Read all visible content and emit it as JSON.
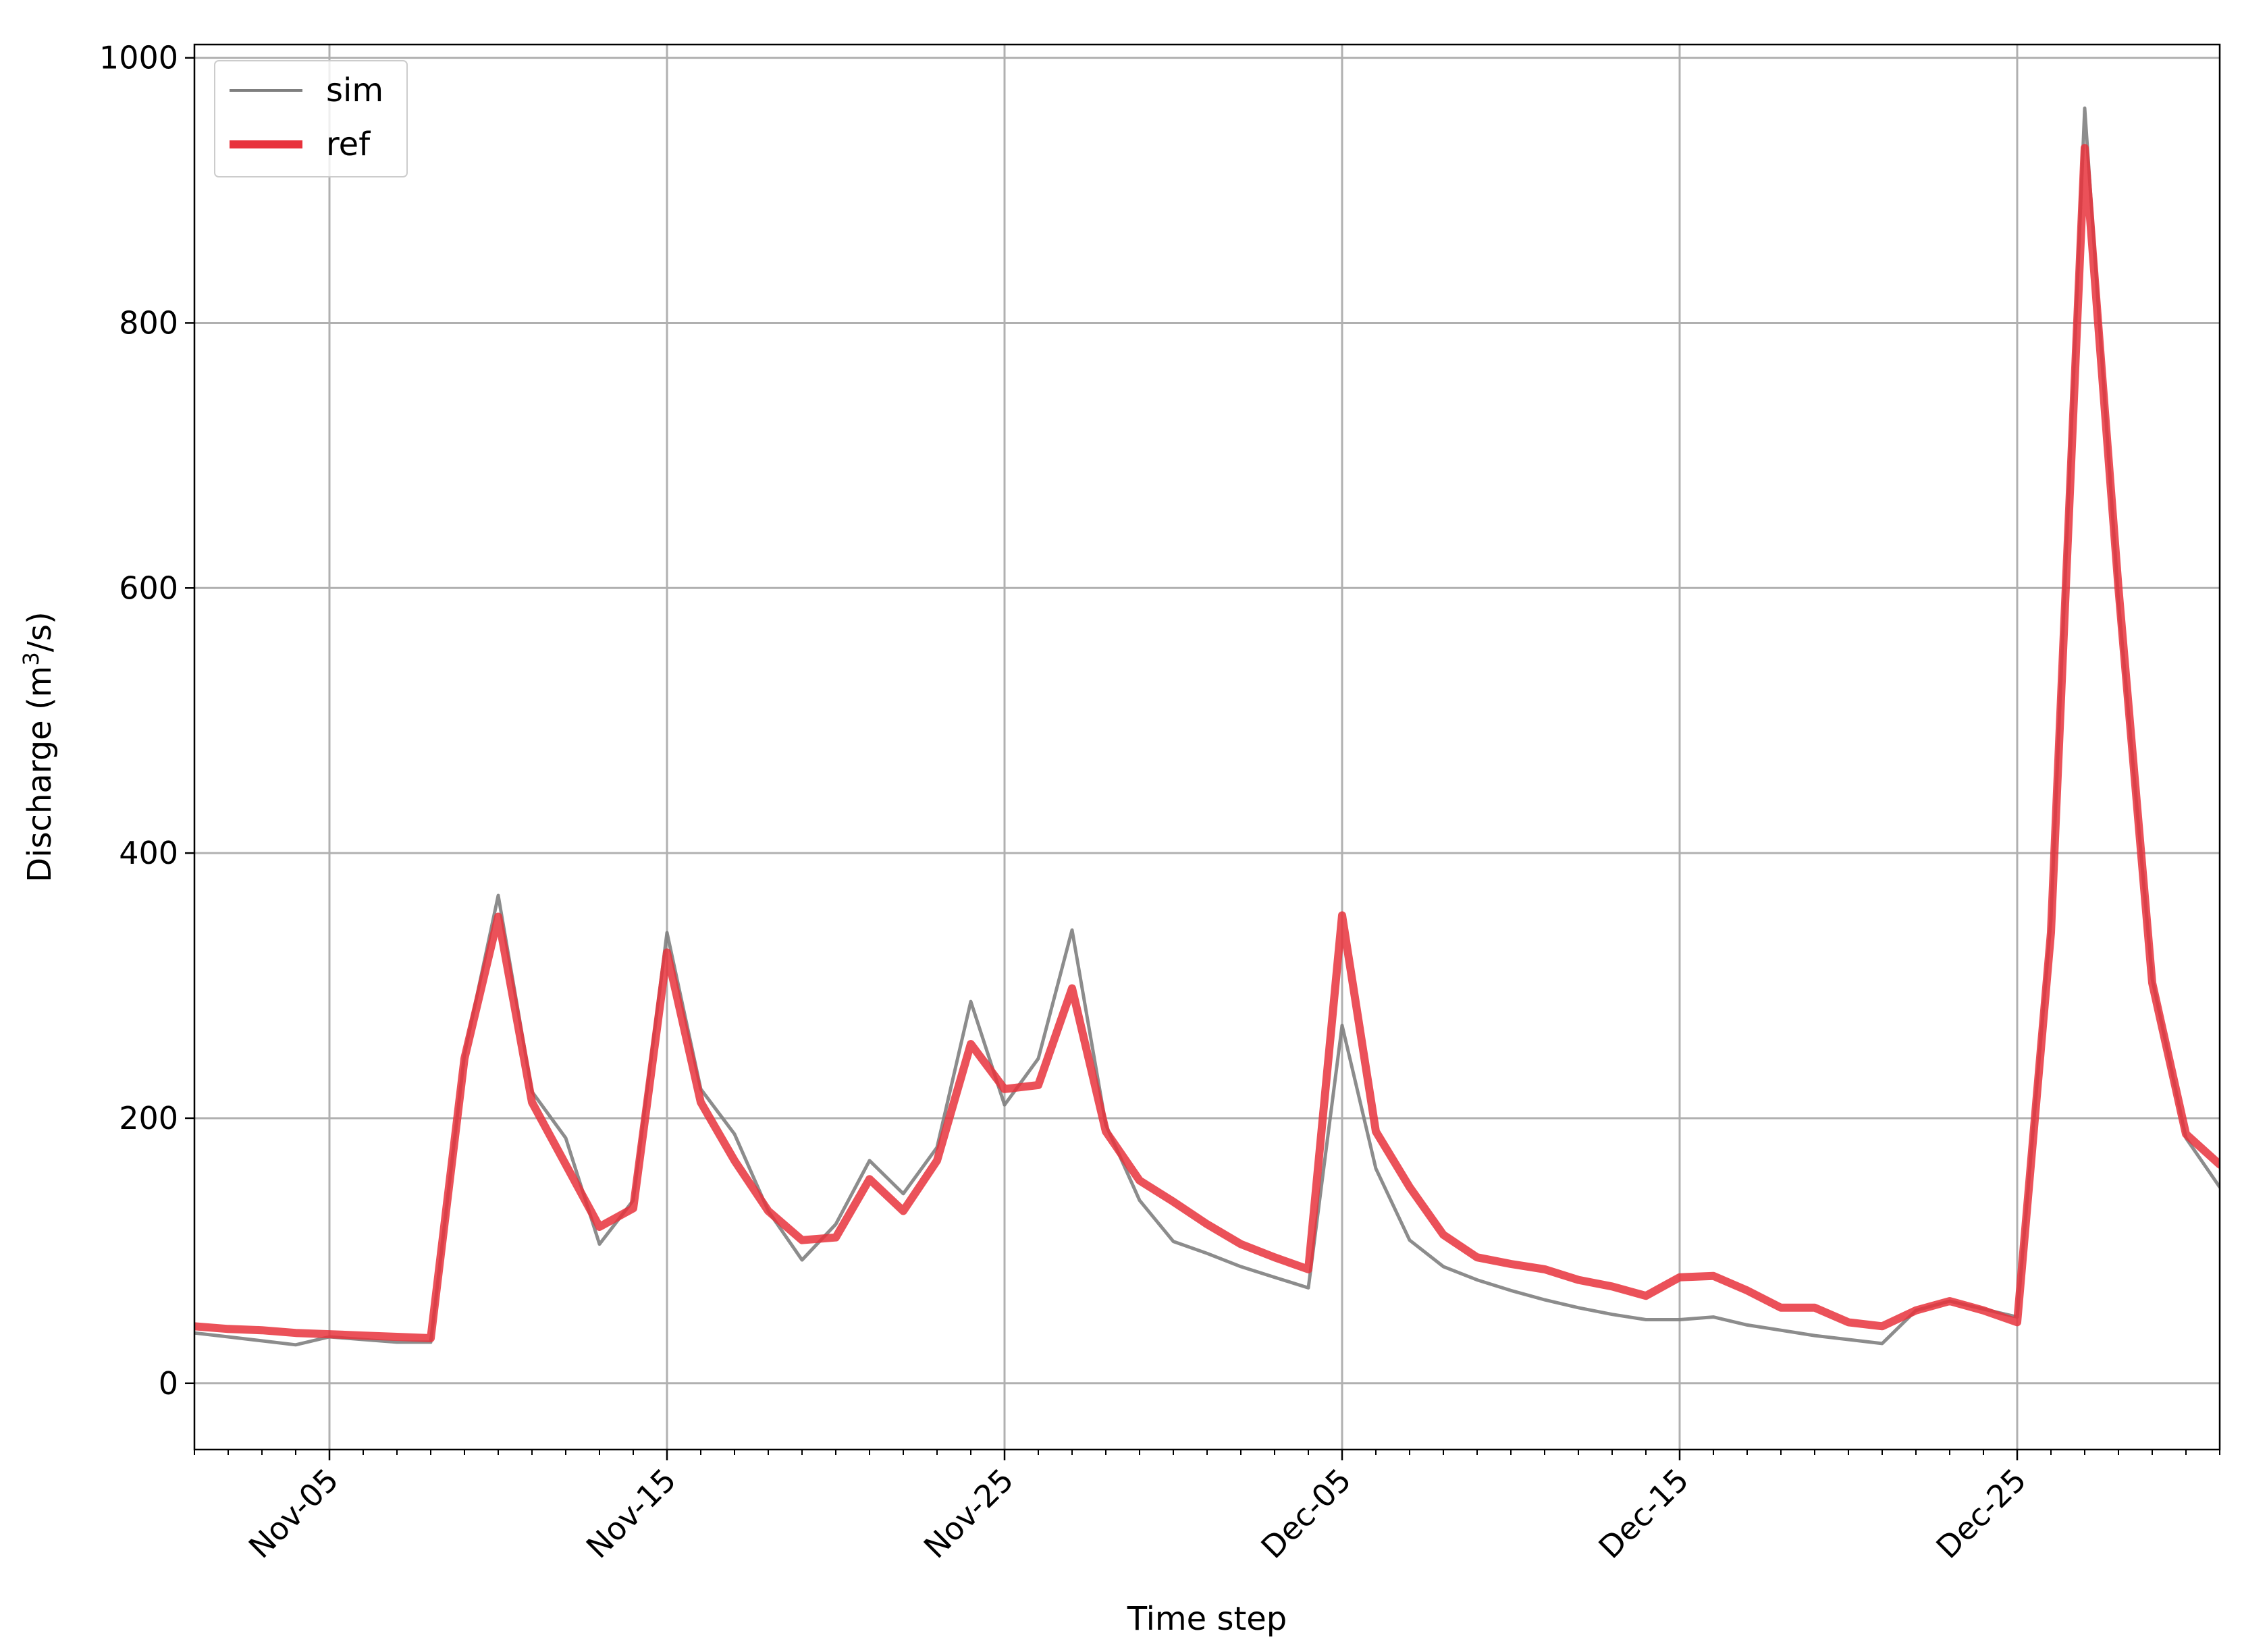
{
  "chart_data": {
    "type": "line",
    "xlabel": "Time step",
    "ylabel": "Discharge (m",
    "ylabel_sup": "3",
    "ylabel_end": "/s)",
    "xlim": [
      "2011-11-01",
      "2011-12-31"
    ],
    "ylim": [
      -50,
      1010
    ],
    "yticks": [
      0,
      200,
      400,
      600,
      800,
      1000
    ],
    "xticks": [
      {
        "date": "2011-11-05",
        "label": "Nov-05"
      },
      {
        "date": "2011-11-15",
        "label": "Nov-15"
      },
      {
        "date": "2011-11-25",
        "label": "Nov-25"
      },
      {
        "date": "2011-12-05",
        "label": "Dec-05"
      },
      {
        "date": "2011-12-15",
        "label": "Dec-15"
      },
      {
        "date": "2011-12-25",
        "label": "Dec-25"
      }
    ],
    "grid": true,
    "legend": {
      "placement": "top-left"
    },
    "colors": {
      "sim": "#7f7f7f",
      "ref": "#e8323c",
      "grid": "#b0b0b0"
    },
    "series": [
      {
        "name": "sim",
        "x": [
          "2011-11-01",
          "2011-11-02",
          "2011-11-03",
          "2011-11-04",
          "2011-11-05",
          "2011-11-06",
          "2011-11-07",
          "2011-11-08",
          "2011-11-09",
          "2011-11-10",
          "2011-11-11",
          "2011-11-12",
          "2011-11-13",
          "2011-11-14",
          "2011-11-15",
          "2011-11-16",
          "2011-11-17",
          "2011-11-18",
          "2011-11-19",
          "2011-11-20",
          "2011-11-21",
          "2011-11-22",
          "2011-11-23",
          "2011-11-24",
          "2011-11-25",
          "2011-11-26",
          "2011-11-27",
          "2011-11-28",
          "2011-11-29",
          "2011-11-30",
          "2011-12-01",
          "2011-12-02",
          "2011-12-03",
          "2011-12-04",
          "2011-12-05",
          "2011-12-06",
          "2011-12-07",
          "2011-12-08",
          "2011-12-09",
          "2011-12-10",
          "2011-12-11",
          "2011-12-12",
          "2011-12-13",
          "2011-12-14",
          "2011-12-15",
          "2011-12-16",
          "2011-12-17",
          "2011-12-18",
          "2011-12-19",
          "2011-12-20",
          "2011-12-21",
          "2011-12-22",
          "2011-12-23",
          "2011-12-24",
          "2011-12-25",
          "2011-12-26",
          "2011-12-27",
          "2011-12-28",
          "2011-12-29",
          "2011-12-30",
          "2011-12-31"
        ],
        "y": [
          38,
          35,
          32,
          29,
          35,
          33,
          31,
          31,
          248,
          368,
          220,
          185,
          105,
          138,
          340,
          222,
          188,
          130,
          93,
          120,
          168,
          143,
          178,
          288,
          210,
          245,
          342,
          195,
          138,
          107,
          98,
          88,
          80,
          72,
          270,
          162,
          108,
          88,
          78,
          70,
          63,
          57,
          52,
          48,
          48,
          50,
          44,
          40,
          36,
          33,
          30,
          55,
          62,
          56,
          50,
          350,
          962,
          590,
          305,
          185,
          148
        ]
      },
      {
        "name": "ref",
        "x": [
          "2011-11-01",
          "2011-11-02",
          "2011-11-03",
          "2011-11-04",
          "2011-11-05",
          "2011-11-06",
          "2011-11-07",
          "2011-11-08",
          "2011-11-09",
          "2011-11-10",
          "2011-11-11",
          "2011-11-12",
          "2011-11-13",
          "2011-11-14",
          "2011-11-15",
          "2011-11-16",
          "2011-11-17",
          "2011-11-18",
          "2011-11-19",
          "2011-11-20",
          "2011-11-21",
          "2011-11-22",
          "2011-11-23",
          "2011-11-24",
          "2011-11-25",
          "2011-11-26",
          "2011-11-27",
          "2011-11-28",
          "2011-11-29",
          "2011-11-30",
          "2011-12-01",
          "2011-12-02",
          "2011-12-03",
          "2011-12-04",
          "2011-12-05",
          "2011-12-06",
          "2011-12-07",
          "2011-12-08",
          "2011-12-09",
          "2011-12-10",
          "2011-12-11",
          "2011-12-12",
          "2011-12-13",
          "2011-12-14",
          "2011-12-15",
          "2011-12-16",
          "2011-12-17",
          "2011-12-18",
          "2011-12-19",
          "2011-12-20",
          "2011-12-21",
          "2011-12-22",
          "2011-12-23",
          "2011-12-24",
          "2011-12-25",
          "2011-12-26",
          "2011-12-27",
          "2011-12-28",
          "2011-12-29",
          "2011-12-30",
          "2011-12-31"
        ],
        "y": [
          43,
          41,
          40,
          38,
          37,
          36,
          35,
          34,
          245,
          352,
          212,
          165,
          118,
          132,
          325,
          212,
          168,
          130,
          108,
          110,
          154,
          130,
          168,
          256,
          222,
          225,
          298,
          190,
          153,
          137,
          120,
          105,
          95,
          86,
          353,
          190,
          148,
          112,
          95,
          90,
          86,
          78,
          73,
          66,
          80,
          81,
          70,
          57,
          57,
          46,
          43,
          55,
          62,
          55,
          46,
          340,
          932,
          600,
          302,
          188,
          165
        ]
      }
    ]
  }
}
